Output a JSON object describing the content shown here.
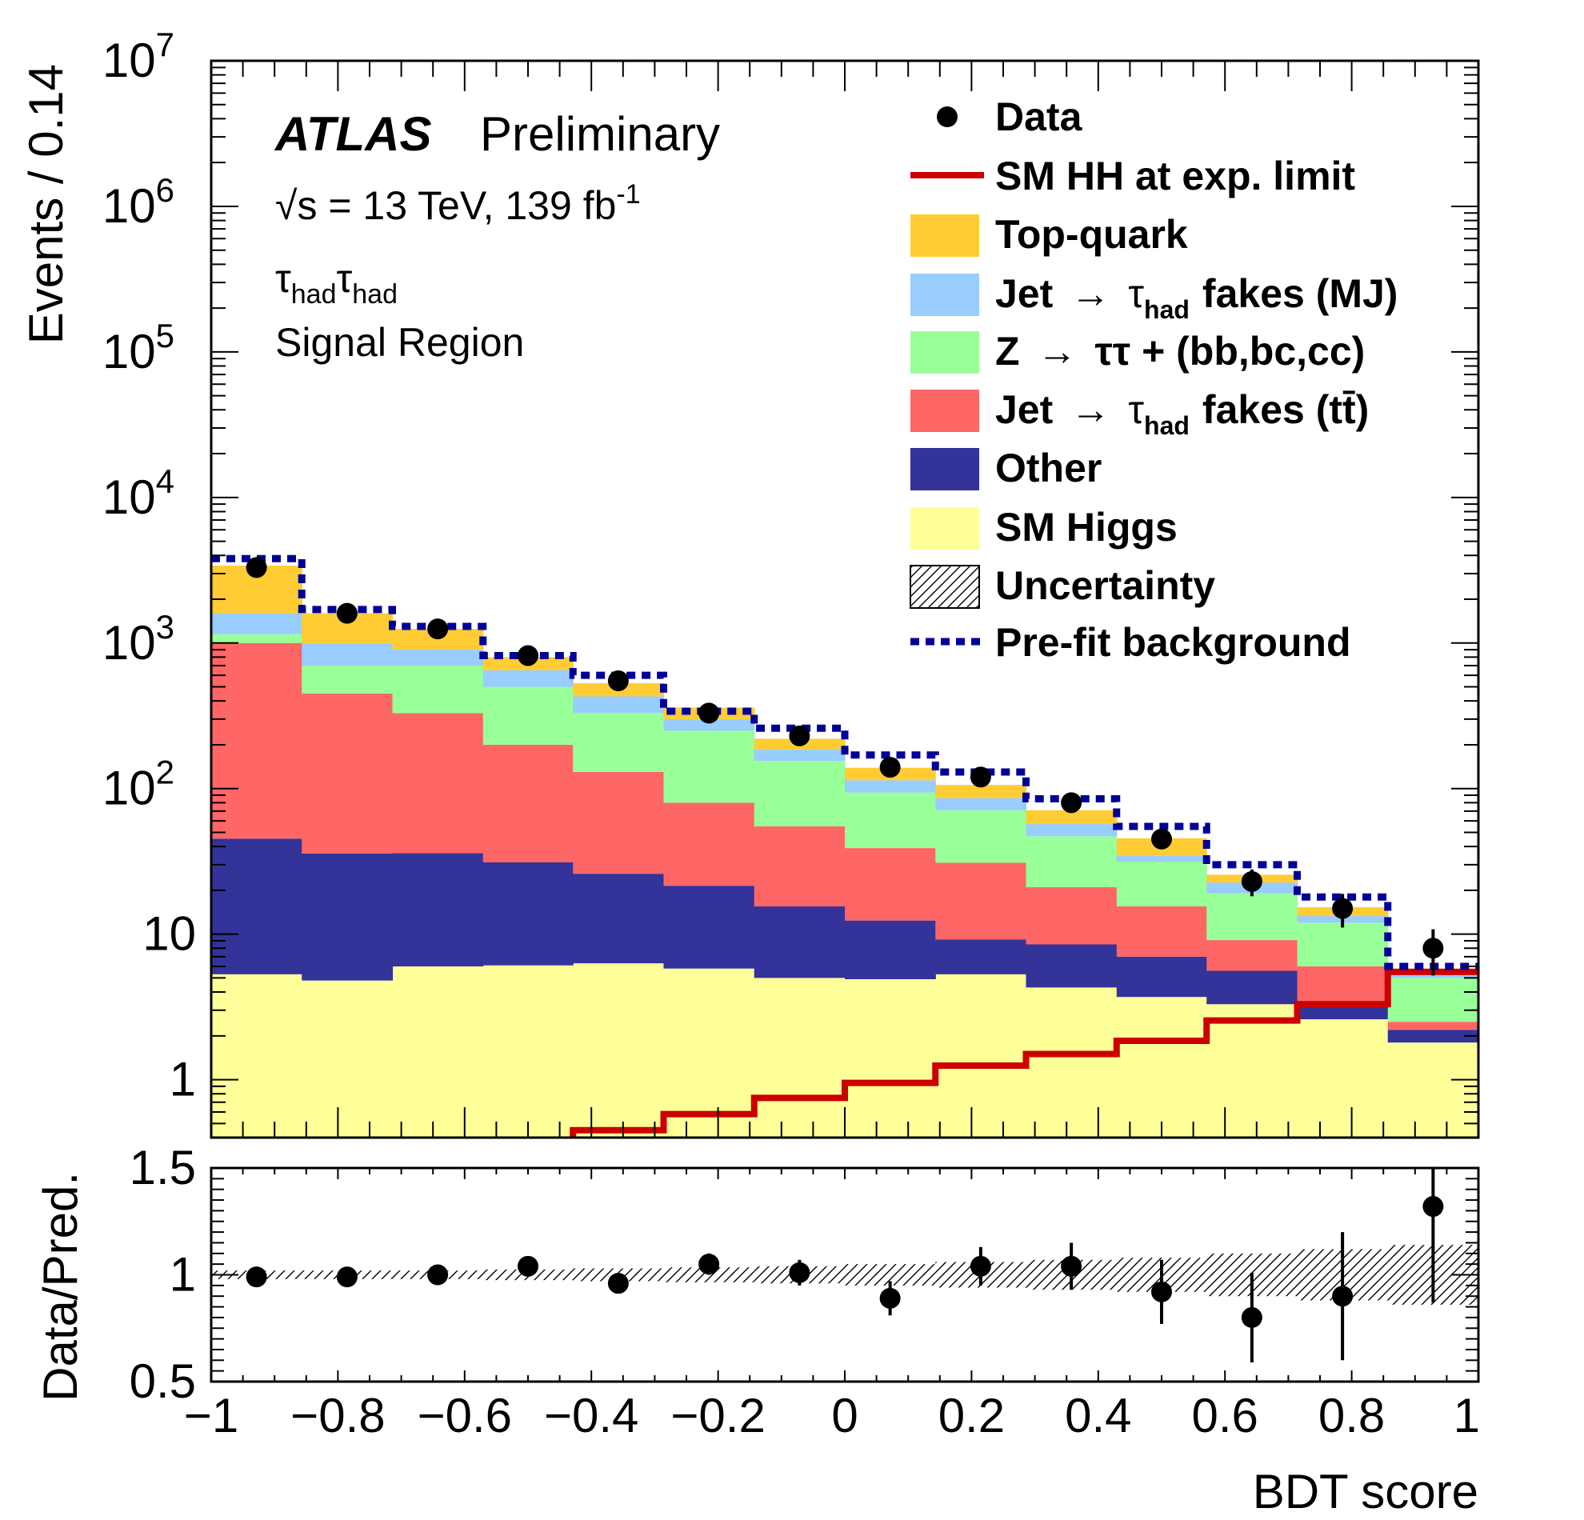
{
  "labels": {
    "atlas": "ATLAS",
    "preliminary": "Preliminary",
    "energy": "√s = 13 TeV, 139 fb",
    "energy_sup": "-1",
    "channel_main": "τ",
    "channel_sub": "had",
    "region": "Signal Region",
    "ylabel_top": "Events / 0.14",
    "ylabel_bottom": "Data/Pred.",
    "xlabel": "BDT score"
  },
  "legend": {
    "data": "Data",
    "hh": "SM HH at exp. limit",
    "top": "Top-quark",
    "mj_a": "Jet",
    "mj_b": "fakes (MJ)",
    "z_a": "Z",
    "z_b": "ττ + (bb,bc,cc)",
    "tt_a": "Jet",
    "tt_b": "fakes (tt̄)",
    "tau": "τ",
    "tau_sub": "had",
    "arrow": "→",
    "other": "Other",
    "higgs": "SM Higgs",
    "unc": "Uncertainty",
    "prefit": "Pre-fit background"
  },
  "colors": {
    "top": "#ffcc33",
    "mj": "#99ccff",
    "z": "#99ff99",
    "ttfake": "#ff6666",
    "other": "#333399",
    "higgs": "#ffff99",
    "hh": "#cc0000",
    "prefit": "#000099"
  },
  "chart_data": {
    "type": "bar",
    "stacked": true,
    "xlabel": "BDT score",
    "ylabel": "Events / 0.14",
    "xlim": [
      -1,
      1
    ],
    "ylim": [
      0.4,
      10000000
    ],
    "yscale": "log",
    "bin_edges": [
      -1.0,
      -0.857,
      -0.714,
      -0.571,
      -0.429,
      -0.286,
      -0.143,
      0.0,
      0.143,
      0.286,
      0.429,
      0.571,
      0.714,
      0.857,
      1.0
    ],
    "x_ticks": [
      -1,
      -0.8,
      -0.6,
      -0.4,
      -0.2,
      0,
      0.2,
      0.4,
      0.6,
      0.8,
      1
    ],
    "x_tick_labels": [
      "−1",
      "−0.8",
      "−0.6",
      "−0.4",
      "−0.2",
      "0",
      "0.2",
      "0.4",
      "0.6",
      "0.8",
      "1"
    ],
    "y_ticks_main": [
      {
        "value": 1,
        "base": "1",
        "exp": ""
      },
      {
        "value": 10,
        "base": "10",
        "exp": ""
      },
      {
        "value": 100,
        "base": "10",
        "exp": "2"
      },
      {
        "value": 1000,
        "base": "10",
        "exp": "3"
      },
      {
        "value": 10000,
        "base": "10",
        "exp": "4"
      },
      {
        "value": 100000,
        "base": "10",
        "exp": "5"
      },
      {
        "value": 1000000,
        "base": "10",
        "exp": "6"
      },
      {
        "value": 10000000,
        "base": "10",
        "exp": "7"
      }
    ],
    "series": [
      {
        "name": "SM Higgs",
        "color_key": "higgs",
        "values": [
          5.3,
          4.8,
          6.0,
          6.1,
          6.3,
          5.8,
          5.0,
          4.9,
          5.3,
          4.3,
          3.7,
          3.3,
          2.6,
          1.8
        ]
      },
      {
        "name": "Other",
        "color_key": "other",
        "values": [
          40,
          31,
          30,
          25,
          19.7,
          15.7,
          10.5,
          7.5,
          3.9,
          4.2,
          3.3,
          2.3,
          0.7,
          0.4
        ]
      },
      {
        "name": "Jet → τhad fakes (tt̄)",
        "color_key": "ttfake",
        "values": [
          955,
          414,
          294,
          169,
          104,
          58.5,
          39.5,
          26.6,
          21.8,
          12.5,
          8.5,
          3.5,
          2.7,
          0.3
        ]
      },
      {
        "name": "Z → ττ + (bb,bc,cc)",
        "color_key": "z",
        "values": [
          150,
          250,
          370,
          300,
          200,
          170,
          100,
          55,
          40,
          26,
          16,
          10,
          6,
          2.5
        ]
      },
      {
        "name": "Jet → τhad fakes (MJ)",
        "color_key": "mj",
        "values": [
          450,
          300,
          200,
          150,
          100,
          50,
          30,
          20,
          15,
          10,
          3,
          3.5,
          1.3,
          0.3
        ]
      },
      {
        "name": "Top-quark",
        "color_key": "top",
        "values": [
          1800,
          600,
          350,
          150,
          100,
          60,
          35,
          25,
          20,
          14,
          11,
          3,
          2,
          0.5
        ]
      }
    ],
    "data": {
      "name": "Data",
      "values": [
        3300,
        1600,
        1250,
        820,
        550,
        330,
        230,
        140,
        120,
        80,
        45,
        23,
        15,
        8
      ],
      "errors": [
        57,
        40,
        35,
        29,
        23,
        18,
        15,
        12,
        11,
        9,
        6.7,
        4.8,
        3.9,
        2.8
      ]
    },
    "prefit_background": {
      "name": "Pre-fit background",
      "values": [
        3800,
        1700,
        1300,
        820,
        600,
        340,
        260,
        170,
        130,
        85,
        55,
        30,
        18,
        6
      ]
    },
    "hh_signal": {
      "name": "SM HH at exp. limit",
      "values": [
        0.25,
        0.3,
        0.35,
        0.38,
        0.45,
        0.58,
        0.75,
        0.95,
        1.25,
        1.5,
        1.85,
        2.55,
        3.3,
        5.5
      ]
    },
    "ratio": {
      "ylabel": "Data/Pred.",
      "ylim": [
        0.5,
        1.5
      ],
      "y_ticks": [
        0.5,
        1,
        1.5
      ],
      "y_tick_labels": [
        "0.5",
        "1",
        "1.5"
      ],
      "values": [
        0.99,
        0.99,
        1.0,
        1.04,
        0.96,
        1.05,
        1.01,
        0.89,
        1.04,
        1.04,
        0.92,
        0.8,
        0.9,
        1.32
      ],
      "errors": [
        0.02,
        0.02,
        0.02,
        0.03,
        0.03,
        0.05,
        0.06,
        0.08,
        0.09,
        0.11,
        0.15,
        0.21,
        0.3,
        0.45
      ],
      "uncertainty": [
        0.02,
        0.02,
        0.02,
        0.025,
        0.03,
        0.035,
        0.04,
        0.05,
        0.06,
        0.07,
        0.08,
        0.1,
        0.12,
        0.14
      ]
    }
  }
}
